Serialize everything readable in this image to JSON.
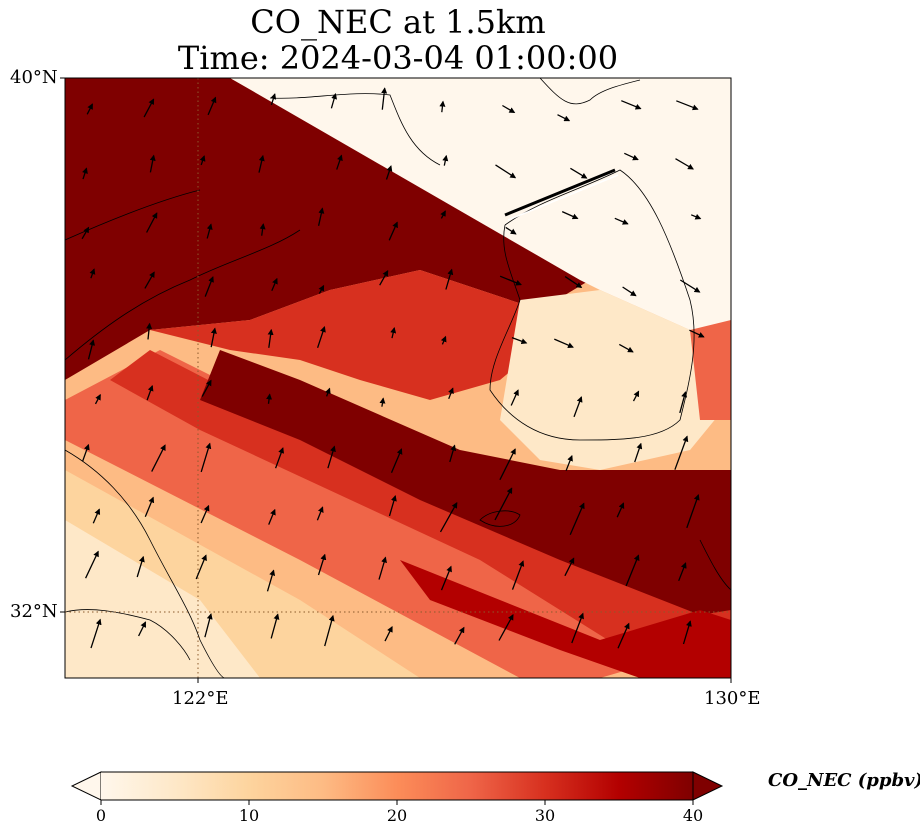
{
  "title": {
    "line1": "CO_NEC at 1.5km",
    "line2": "Time: 2024-03-04 01:00:00"
  },
  "axes": {
    "lat_labels": [
      "40°N",
      "32°N"
    ],
    "lon_labels": [
      "122°E",
      "130°E"
    ]
  },
  "colorbar": {
    "label": "CO_NEC (ppbv)",
    "ticks": [
      "0",
      "10",
      "20",
      "30",
      "40"
    ],
    "colormap": "OrRd",
    "range": [
      0,
      40
    ],
    "extend": "both",
    "colors": [
      "#fff7ec",
      "#fee8c8",
      "#fdd49e",
      "#fdbb84",
      "#fc8d59",
      "#ef6548",
      "#d7301f",
      "#b30000",
      "#7f0000"
    ]
  },
  "map": {
    "lon_range": [
      120,
      130
    ],
    "lat_range": [
      31,
      40
    ],
    "gridlines": {
      "lon": [
        122
      ],
      "lat": [
        32
      ],
      "style": "dotted"
    },
    "field": "CO_NEC",
    "units": "ppbv",
    "level": "1.5km",
    "wind_vectors": true
  }
}
